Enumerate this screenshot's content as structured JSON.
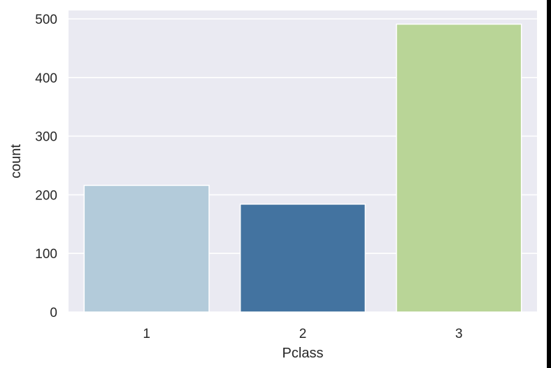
{
  "chart_data": {
    "type": "bar",
    "categories": [
      "1",
      "2",
      "3"
    ],
    "values": [
      216,
      184,
      491
    ],
    "colors": [
      "#b3cbda",
      "#4373a0",
      "#b9d597"
    ],
    "xlabel": "Pclass",
    "ylabel": "count",
    "ylim": [
      0,
      500
    ],
    "yticks": [
      "0",
      "100",
      "200",
      "300",
      "400",
      "500"
    ],
    "grid": true,
    "background": "#eaeaf2",
    "grid_color": "#ffffff"
  }
}
